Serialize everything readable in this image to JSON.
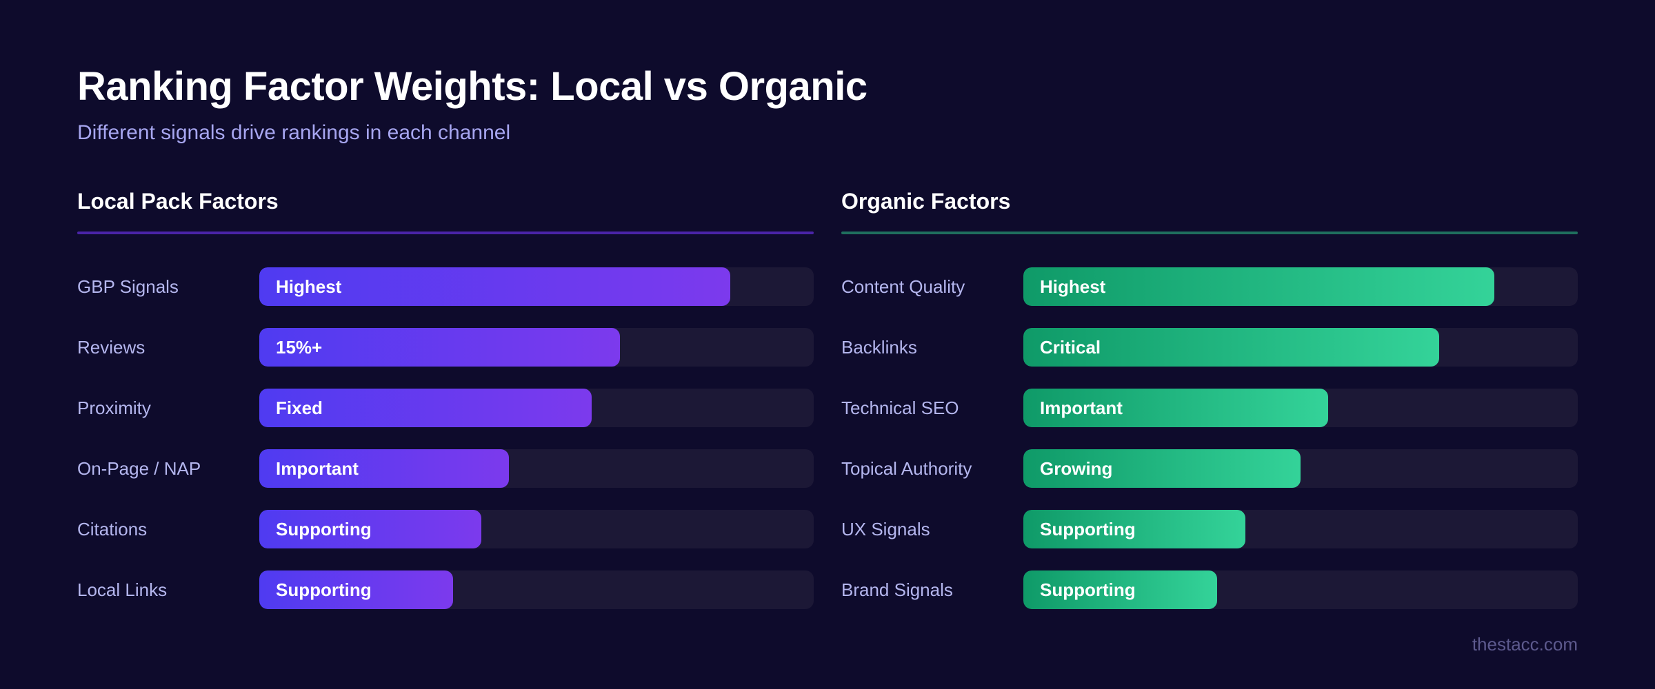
{
  "header": {
    "title": "Ranking Factor Weights: Local vs Organic",
    "subtitle": "Different signals drive rankings in each channel"
  },
  "footer": {
    "credit": "thestacc.com"
  },
  "colors": {
    "background": "#0e0b2c",
    "local_bar_start": "#4f3bf1",
    "local_bar_end": "#7c3aed",
    "organic_bar_start": "#0f9a68",
    "organic_bar_end": "#34d399",
    "track": "#1c1836"
  },
  "chart_data": [
    {
      "type": "bar",
      "orientation": "horizontal",
      "title": "Local Pack Factors",
      "categories": [
        "GBP Signals",
        "Reviews",
        "Proximity",
        "On-Page / NAP",
        "Citations",
        "Local Links"
      ],
      "bar_labels": [
        "Highest",
        "15%+",
        "Fixed",
        "Important",
        "Supporting",
        "Supporting"
      ],
      "values": [
        85,
        65,
        60,
        45,
        40,
        35
      ],
      "xlim": [
        0,
        100
      ]
    },
    {
      "type": "bar",
      "orientation": "horizontal",
      "title": "Organic Factors",
      "categories": [
        "Content Quality",
        "Backlinks",
        "Technical SEO",
        "Topical Authority",
        "UX Signals",
        "Brand Signals"
      ],
      "bar_labels": [
        "Highest",
        "Critical",
        "Important",
        "Growing",
        "Supporting",
        "Supporting"
      ],
      "values": [
        85,
        75,
        55,
        50,
        40,
        35
      ],
      "xlim": [
        0,
        100
      ]
    }
  ]
}
